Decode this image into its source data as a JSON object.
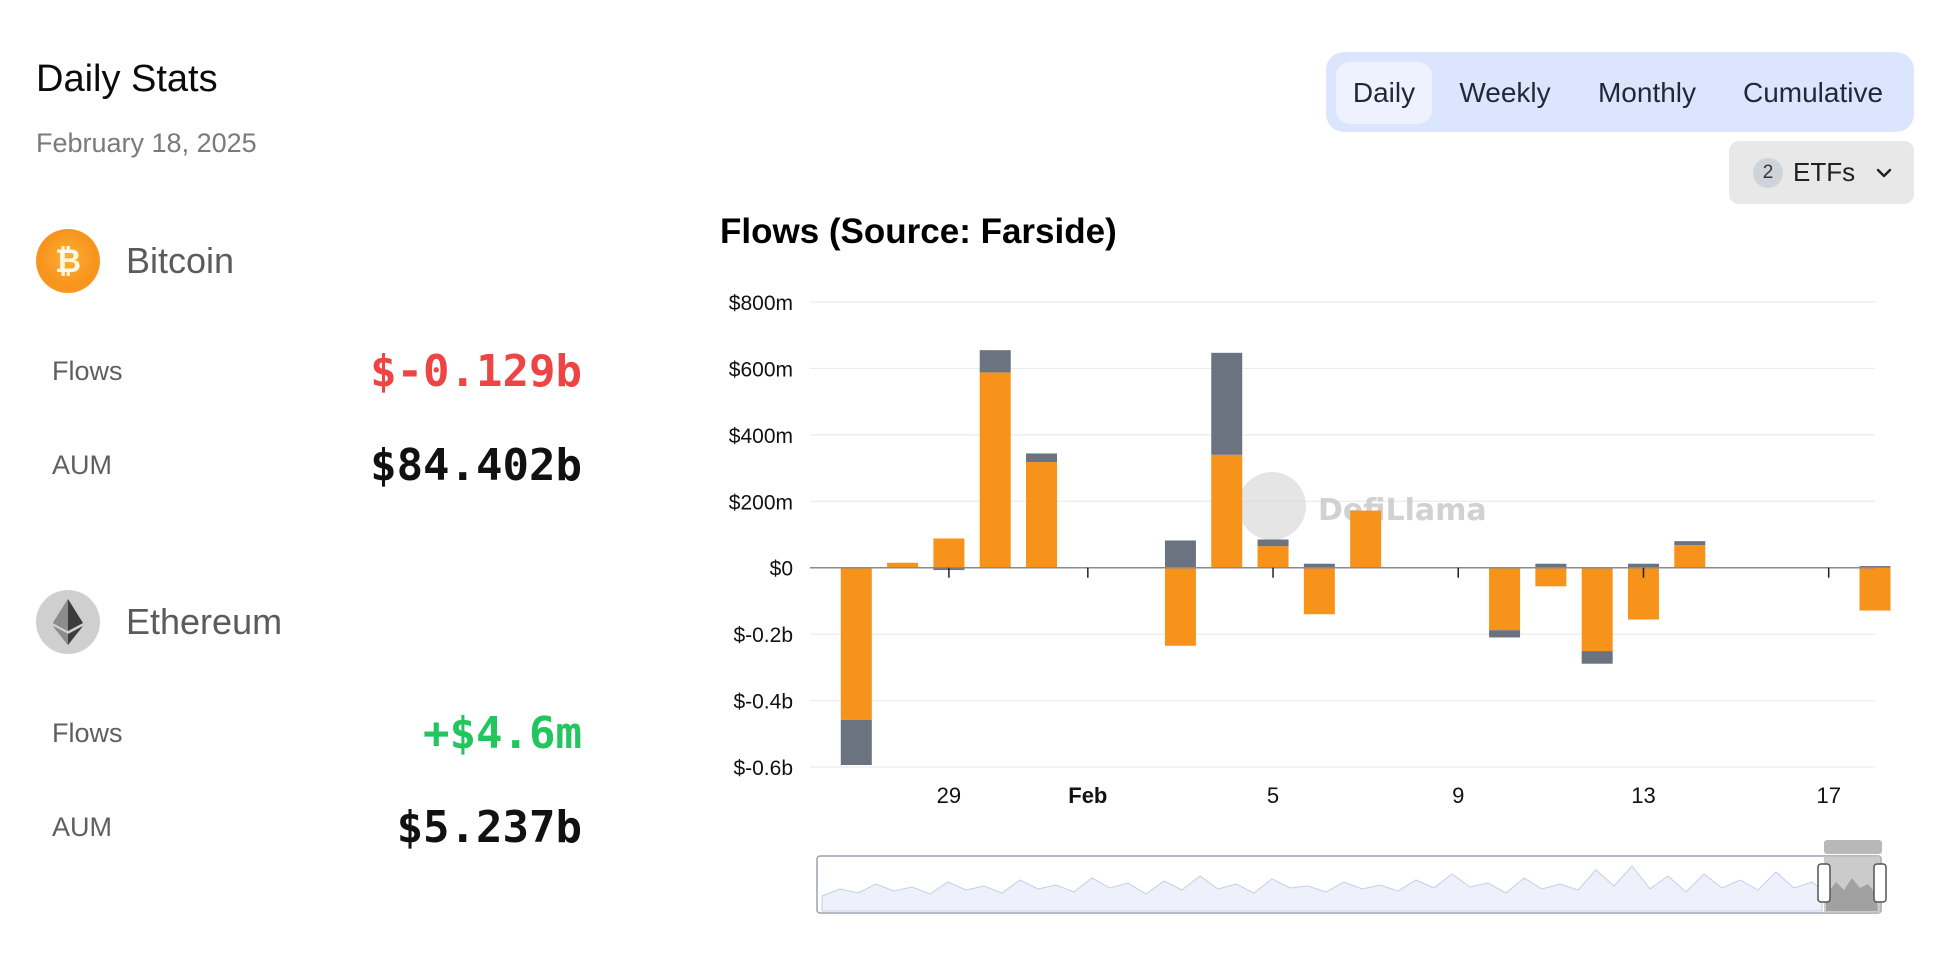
{
  "stats": {
    "title": "Daily Stats",
    "date": "February 18, 2025",
    "bitcoin": {
      "name": "Bitcoin",
      "flows_label": "Flows",
      "flows_value": "$-0.129b",
      "aum_label": "AUM",
      "aum_value": "$84.402b"
    },
    "ethereum": {
      "name": "Ethereum",
      "flows_label": "Flows",
      "flows_value": "+$4.6m",
      "aum_label": "AUM",
      "aum_value": "$5.237b"
    }
  },
  "period_tabs": [
    {
      "label": "Daily",
      "active": true
    },
    {
      "label": "Weekly",
      "active": false
    },
    {
      "label": "Monthly",
      "active": false
    },
    {
      "label": "Cumulative",
      "active": false
    }
  ],
  "etf_filter": {
    "count": "2",
    "label": "ETFs",
    "icon": "chevron-down-icon"
  },
  "colors": {
    "bitcoin": "#f7931a",
    "ethereum": "#6b7280",
    "flows_negative": "#ef4444",
    "flows_positive": "#22c55e",
    "tab_bg": "#dbe5fd"
  },
  "watermark": "DefiLlama",
  "chart_data": {
    "type": "bar",
    "stacked": true,
    "title": "Flows (Source: Farside)",
    "y_ticks": [
      {
        "value": 800,
        "label": "$800m"
      },
      {
        "value": 600,
        "label": "$600m"
      },
      {
        "value": 400,
        "label": "$400m"
      },
      {
        "value": 200,
        "label": "$200m"
      },
      {
        "value": 0,
        "label": "$0"
      },
      {
        "value": -200,
        "label": "$-0.2b"
      },
      {
        "value": -400,
        "label": "$-0.4b"
      },
      {
        "value": -600,
        "label": "$-0.6b"
      }
    ],
    "ylim": [
      -600,
      800
    ],
    "x_ticks": [
      {
        "date": "2025-01-29",
        "label": "29",
        "bold": false
      },
      {
        "date": "2025-02-01",
        "label": "Feb",
        "bold": true
      },
      {
        "date": "2025-02-05",
        "label": "5",
        "bold": false
      },
      {
        "date": "2025-02-09",
        "label": "9",
        "bold": false
      },
      {
        "date": "2025-02-13",
        "label": "13",
        "bold": false
      },
      {
        "date": "2025-02-17",
        "label": "17",
        "bold": false
      }
    ],
    "xlim": [
      "2025-01-26",
      "2025-02-18"
    ],
    "dates": [
      "2025-01-27",
      "2025-01-28",
      "2025-01-29",
      "2025-01-30",
      "2025-01-31",
      "2025-02-03",
      "2025-02-04",
      "2025-02-05",
      "2025-02-06",
      "2025-02-07",
      "2025-02-10",
      "2025-02-11",
      "2025-02-12",
      "2025-02-13",
      "2025-02-14",
      "2025-02-18"
    ],
    "series": [
      {
        "values": [
          -458,
          15,
          88,
          588,
          318,
          -235,
          340,
          65,
          -140,
          172,
          -188,
          -56,
          -251,
          -156,
          68,
          -129
        ]
      },
      {
        "values": [
          -136,
          0,
          -7,
          67,
          26,
          82,
          307,
          20,
          12,
          0,
          -22,
          12,
          -38,
          12,
          12,
          5
        ]
      }
    ],
    "grid": true,
    "legend": "none"
  }
}
